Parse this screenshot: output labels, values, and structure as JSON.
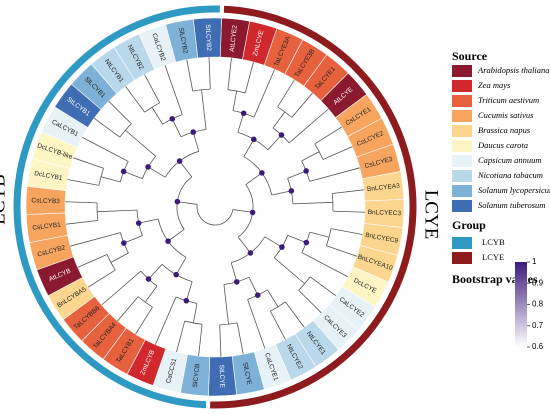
{
  "groups": [
    {
      "name": "LCYE",
      "color": "#8e1b1e"
    },
    {
      "name": "LCYB",
      "color": "#2e9ac4"
    }
  ],
  "legend": {
    "source_title": "Source",
    "sources": [
      {
        "name": "Arabidopsis thaliana",
        "color": "#8c1a2e"
      },
      {
        "name": "Zea mays",
        "color": "#d1282e"
      },
      {
        "name": "Triticum aestivum",
        "color": "#e8613e"
      },
      {
        "name": "Cucumis sativus",
        "color": "#f6a45e"
      },
      {
        "name": "Brassica napus",
        "color": "#fcd58e"
      },
      {
        "name": "Daucus carota",
        "color": "#fdf5c4"
      },
      {
        "name": "Capsicum annuum",
        "color": "#e6f2f7"
      },
      {
        "name": "Nicotiana tabacum",
        "color": "#b9d8ea"
      },
      {
        "name": "Solanum lycopersicum",
        "color": "#7eb1d8"
      },
      {
        "name": "Solanum tuberosum",
        "color": "#3e6db3"
      }
    ],
    "group_title": "Group",
    "bootstrap_title": "Bootstrap values",
    "bootstrap_range": [
      0.6,
      1
    ],
    "bootstrap_ticks": [
      0.6,
      0.7,
      0.8,
      0.9,
      1
    ]
  },
  "leaves": [
    {
      "label": "AtLCYE2",
      "source": 0,
      "group": 0
    },
    {
      "label": "ZmLCYE",
      "source": 1,
      "group": 0
    },
    {
      "label": "TaLCYE3A",
      "source": 2,
      "group": 0
    },
    {
      "label": "TaLCYE3B",
      "source": 2,
      "group": 0
    },
    {
      "label": "TaLCYE1",
      "source": 2,
      "group": 0
    },
    {
      "label": "AtLCYE",
      "source": 0,
      "group": 0
    },
    {
      "label": "CsLCYE1",
      "source": 3,
      "group": 0
    },
    {
      "label": "CsLCYE2",
      "source": 3,
      "group": 0
    },
    {
      "label": "CsLCYE3",
      "source": 3,
      "group": 0
    },
    {
      "label": "BnLCYEA3",
      "source": 4,
      "group": 0
    },
    {
      "label": "BnLCYEC3",
      "source": 4,
      "group": 0
    },
    {
      "label": "BnLCYEC9",
      "source": 4,
      "group": 0
    },
    {
      "label": "BnLCYEA10",
      "source": 4,
      "group": 0
    },
    {
      "label": "DcLCYE",
      "source": 5,
      "group": 0
    },
    {
      "label": "CaLCYE2",
      "source": 6,
      "group": 0
    },
    {
      "label": "CaLCYE3",
      "source": 6,
      "group": 0
    },
    {
      "label": "NtLCYE1",
      "source": 7,
      "group": 0
    },
    {
      "label": "NtLCYE2",
      "source": 7,
      "group": 0
    },
    {
      "label": "CaLCYE1",
      "source": 6,
      "group": 0
    },
    {
      "label": "SlLCYE",
      "source": 8,
      "group": 0
    },
    {
      "label": "StLCYE",
      "source": 9,
      "group": 0
    },
    {
      "label": "SlCYCB",
      "source": 8,
      "group": 1
    },
    {
      "label": "CaCCS1",
      "source": 6,
      "group": 1
    },
    {
      "label": "ZmLCYB",
      "source": 1,
      "group": 1
    },
    {
      "label": "TaLCYB1",
      "source": 2,
      "group": 1
    },
    {
      "label": "TaLCYBA4",
      "source": 2,
      "group": 1
    },
    {
      "label": "TaLCYBB6",
      "source": 2,
      "group": 1
    },
    {
      "label": "BnLCYBA5",
      "source": 4,
      "group": 1
    },
    {
      "label": "AtLCYB",
      "source": 0,
      "group": 1
    },
    {
      "label": "CsLCYB2",
      "source": 3,
      "group": 1
    },
    {
      "label": "CsLCYB1",
      "source": 3,
      "group": 1
    },
    {
      "label": "CsLCYB3",
      "source": 3,
      "group": 1
    },
    {
      "label": "DcLCYB1",
      "source": 5,
      "group": 1
    },
    {
      "label": "DcLCYB-like",
      "source": 5,
      "group": 1
    },
    {
      "label": "CaLCYB1",
      "source": 6,
      "group": 1
    },
    {
      "label": "StLCYB1",
      "source": 9,
      "group": 1
    },
    {
      "label": "SlLCYB1",
      "source": 8,
      "group": 1
    },
    {
      "label": "NtLCYB1",
      "source": 7,
      "group": 1
    },
    {
      "label": "NtLCYB2",
      "source": 7,
      "group": 1
    },
    {
      "label": "CaLCYB2",
      "source": 6,
      "group": 1
    },
    {
      "label": "SlLCYB2",
      "source": 8,
      "group": 1
    },
    {
      "label": "StLCYB2",
      "source": 9,
      "group": 1
    }
  ]
}
